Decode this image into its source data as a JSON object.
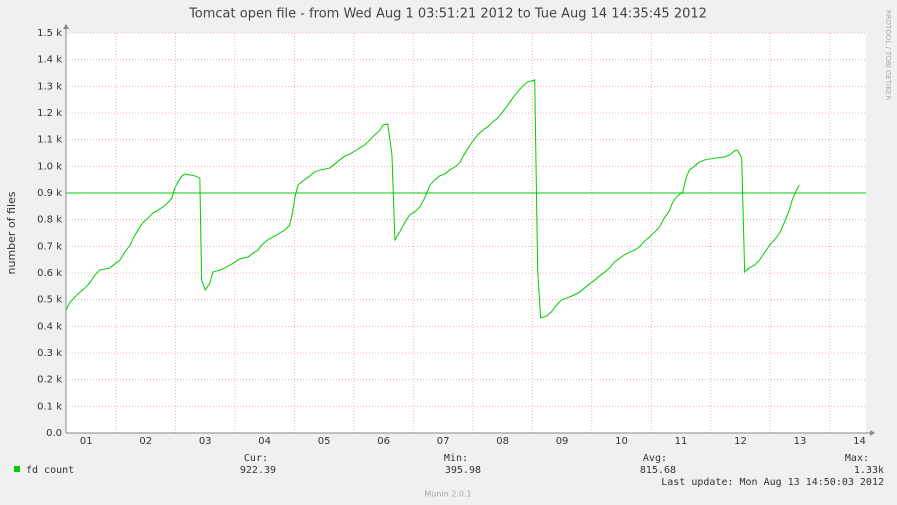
{
  "chart_data": {
    "type": "line",
    "title": "Tomcat open file - from Wed Aug  1 03:51:21 2012 to Tue Aug 14 14:35:45 2012",
    "ylabel": "number of files",
    "watermark": "RRDTOOL / TOBI OETIKER",
    "x": [
      1.16,
      1.23,
      1.31,
      1.4,
      1.48,
      1.56,
      1.65,
      1.73,
      1.9,
      1.98,
      2.07,
      2.15,
      2.24,
      2.29,
      2.37,
      2.45,
      2.54,
      2.62,
      2.71,
      2.79,
      2.87,
      2.94,
      2.99,
      3.04,
      3.11,
      3.16,
      3.33,
      3.41,
      3.44,
      3.5,
      3.58,
      3.63,
      3.75,
      3.83,
      3.92,
      4.0,
      4.08,
      4.22,
      4.28,
      4.39,
      4.45,
      4.55,
      4.67,
      4.76,
      4.84,
      4.92,
      4.96,
      5.01,
      5.06,
      5.14,
      5.26,
      5.34,
      5.43,
      5.6,
      5.68,
      5.76,
      5.85,
      5.93,
      6.02,
      6.1,
      6.18,
      6.27,
      6.35,
      6.44,
      6.49,
      6.57,
      6.64,
      6.69,
      6.77,
      6.86,
      6.94,
      7.02,
      7.11,
      7.19,
      7.28,
      7.36,
      7.44,
      7.53,
      7.61,
      7.7,
      7.78,
      7.83,
      7.9,
      7.98,
      8.08,
      8.17,
      8.25,
      8.33,
      8.42,
      8.5,
      8.59,
      8.67,
      8.75,
      8.84,
      8.92,
      9.04,
      9.09,
      9.14,
      9.24,
      9.32,
      9.41,
      9.49,
      9.58,
      9.71,
      9.8,
      9.88,
      9.96,
      10.05,
      10.13,
      10.22,
      10.3,
      10.38,
      10.47,
      10.55,
      10.64,
      10.72,
      10.8,
      10.89,
      10.97,
      11.06,
      11.14,
      11.22,
      11.31,
      11.36,
      11.44,
      11.53,
      11.59,
      11.64,
      11.73,
      11.81,
      11.9,
      12.06,
      12.23,
      12.32,
      12.4,
      12.45,
      12.52,
      12.57,
      12.65,
      12.74,
      12.82,
      12.9,
      12.99,
      13.07,
      13.16,
      13.24,
      13.32,
      13.37,
      13.44,
      13.49
    ],
    "series": [
      {
        "name": "fd count",
        "color": "#00cc00",
        "values": [
          461,
          491,
          510,
          529,
          544,
          563,
          593,
          611,
          619,
          634,
          649,
          679,
          705,
          731,
          761,
          788,
          806,
          825,
          836,
          848,
          863,
          881,
          919,
          941,
          964,
          971,
          964,
          956,
          574,
          536,
          563,
          604,
          611,
          619,
          630,
          641,
          653,
          660,
          671,
          686,
          705,
          724,
          739,
          750,
          761,
          780,
          818,
          885,
          930,
          945,
          964,
          979,
          986,
          994,
          1009,
          1024,
          1039,
          1046,
          1058,
          1069,
          1080,
          1099,
          1118,
          1136,
          1155,
          1159,
          1043,
          724,
          754,
          791,
          818,
          829,
          848,
          881,
          930,
          949,
          964,
          971,
          986,
          998,
          1013,
          1035,
          1061,
          1088,
          1118,
          1136,
          1148,
          1166,
          1181,
          1204,
          1230,
          1256,
          1279,
          1301,
          1316,
          1324,
          611,
          431,
          439,
          454,
          480,
          499,
          506,
          518,
          529,
          544,
          559,
          574,
          589,
          604,
          619,
          641,
          656,
          668,
          679,
          686,
          698,
          720,
          735,
          754,
          773,
          806,
          836,
          866,
          889,
          904,
          960,
          986,
          1001,
          1016,
          1024,
          1031,
          1035,
          1043,
          1058,
          1061,
          1031,
          604,
          619,
          630,
          649,
          675,
          705,
          724,
          750,
          791,
          836,
          874,
          911,
          930
        ]
      }
    ],
    "xlim": [
      1.16,
      14.61
    ],
    "xticks": [
      {
        "value": 1.5,
        "label": "01"
      },
      {
        "value": 2.5,
        "label": "02"
      },
      {
        "value": 3.5,
        "label": "03"
      },
      {
        "value": 4.5,
        "label": "04"
      },
      {
        "value": 5.5,
        "label": "05"
      },
      {
        "value": 6.5,
        "label": "06"
      },
      {
        "value": 7.5,
        "label": "07"
      },
      {
        "value": 8.5,
        "label": "08"
      },
      {
        "value": 9.5,
        "label": "09"
      },
      {
        "value": 10.5,
        "label": "10"
      },
      {
        "value": 11.5,
        "label": "11"
      },
      {
        "value": 12.5,
        "label": "12"
      },
      {
        "value": 13.5,
        "label": "13"
      },
      {
        "value": 14.5,
        "label": "14"
      }
    ],
    "xgrid": [
      2,
      3,
      4,
      5,
      6,
      7,
      8,
      9,
      10,
      11,
      12,
      13,
      14
    ],
    "ylim": [
      0,
      1500
    ],
    "yticks": [
      {
        "value": 0,
        "label": "0.0"
      },
      {
        "value": 100,
        "label": "0.1 k"
      },
      {
        "value": 200,
        "label": "0.2 k"
      },
      {
        "value": 300,
        "label": "0.3 k"
      },
      {
        "value": 400,
        "label": "0.4 k"
      },
      {
        "value": 500,
        "label": "0.5 k"
      },
      {
        "value": 600,
        "label": "0.6 k"
      },
      {
        "value": 700,
        "label": "0.7 k"
      },
      {
        "value": 800,
        "label": "0.8 k"
      },
      {
        "value": 900,
        "label": "0.9 k"
      },
      {
        "value": 1000,
        "label": "1.0 k"
      },
      {
        "value": 1100,
        "label": "1.1 k"
      },
      {
        "value": 1200,
        "label": "1.2 k"
      },
      {
        "value": 1300,
        "label": "1.3 k"
      },
      {
        "value": 1400,
        "label": "1.4 k"
      },
      {
        "value": 1500,
        "label": "1.5 k"
      }
    ],
    "grid": true,
    "hline": {
      "value": 900,
      "color": "#00cc00"
    },
    "stats": [
      {
        "label": "Cur:",
        "value": 922.39
      },
      {
        "label": "Min:",
        "value": 395.98
      },
      {
        "label": "Avg:",
        "value": 815.68
      },
      {
        "label": "Max:",
        "value": 1330,
        "value_label": "1.33k"
      }
    ],
    "last_update": "Last update: Mon Aug 13 14:50:03 2012",
    "footer": "Munin 2.0.1"
  }
}
